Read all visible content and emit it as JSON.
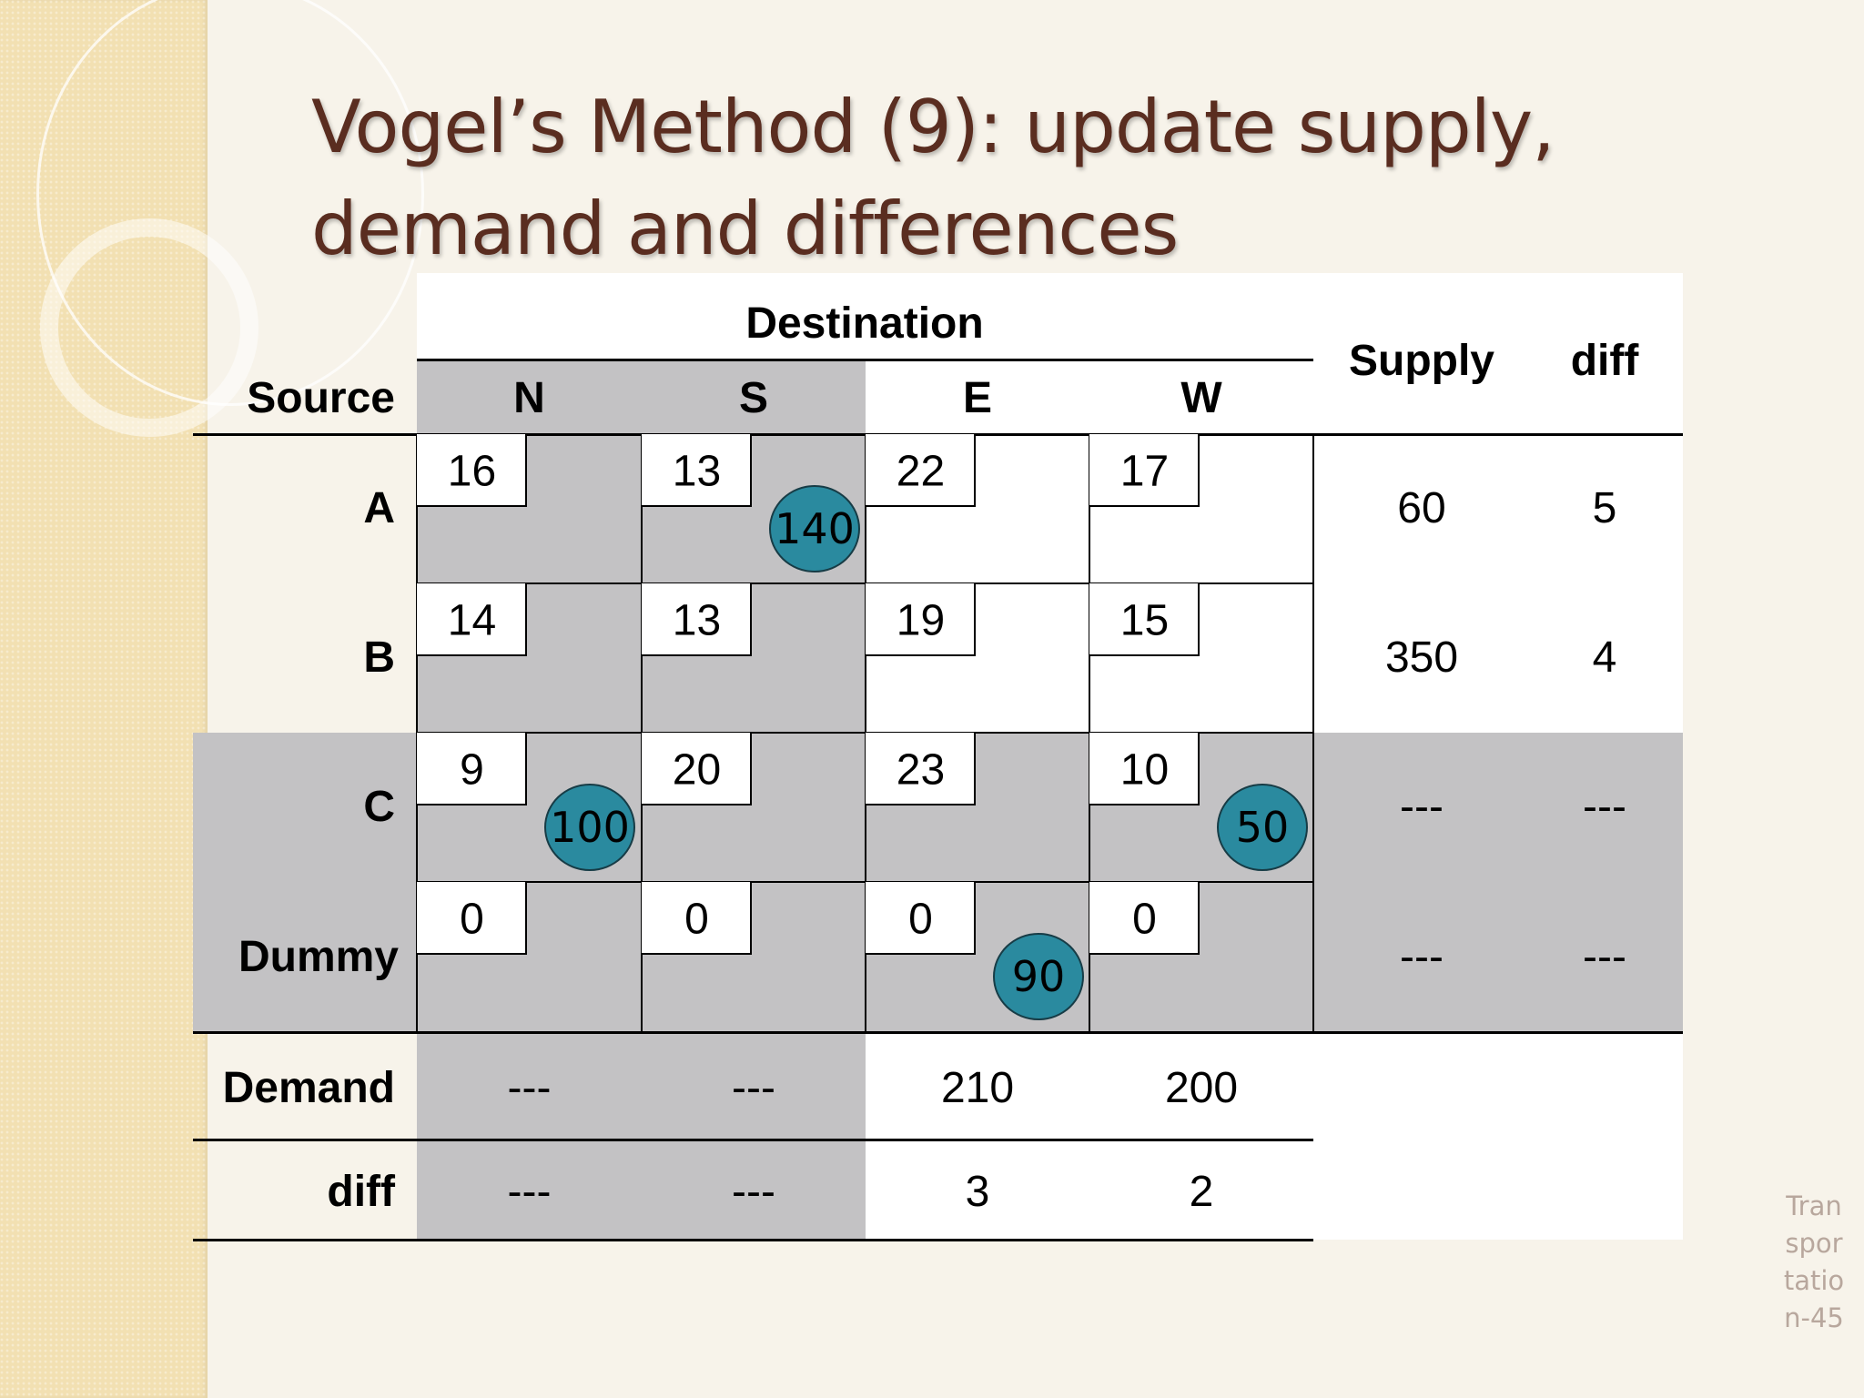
{
  "slide": {
    "title": "Vogel’s Method (9): update supply, demand and differences",
    "slide_number": "Transportation-45"
  },
  "table": {
    "destination_header": "Destination",
    "source_header": "Source",
    "supply_header": "Supply",
    "diff_header": "diff",
    "demand_label": "Demand",
    "diff_row_label": "diff",
    "columns": [
      "N",
      "S",
      "E",
      "W"
    ],
    "rows": [
      {
        "name": "A",
        "costs": [
          "16",
          "13",
          "22",
          "17"
        ],
        "supply": "60",
        "diff": "5"
      },
      {
        "name": "B",
        "costs": [
          "14",
          "13",
          "19",
          "15"
        ],
        "supply": "350",
        "diff": "4"
      },
      {
        "name": "C",
        "costs": [
          "9",
          "20",
          "23",
          "10"
        ],
        "supply": "---",
        "diff": "---"
      },
      {
        "name": "Dummy",
        "costs": [
          "0",
          "0",
          "0",
          "0"
        ],
        "supply": "---",
        "diff": "---"
      }
    ],
    "demand": [
      "---",
      "---",
      "210",
      "200"
    ],
    "column_diff": [
      "---",
      "---",
      "3",
      "2"
    ],
    "allocations": [
      {
        "row": "A",
        "column": "S",
        "amount": "140"
      },
      {
        "row": "C",
        "column": "N",
        "amount": "100"
      },
      {
        "row": "C",
        "column": "W",
        "amount": "50"
      },
      {
        "row": "Dummy",
        "column": "E",
        "amount": "90"
      }
    ],
    "colors": {
      "crossed_out": "#c3c2c4",
      "allocation_circle": "#2a8a9f",
      "title": "#5a2d20"
    }
  }
}
